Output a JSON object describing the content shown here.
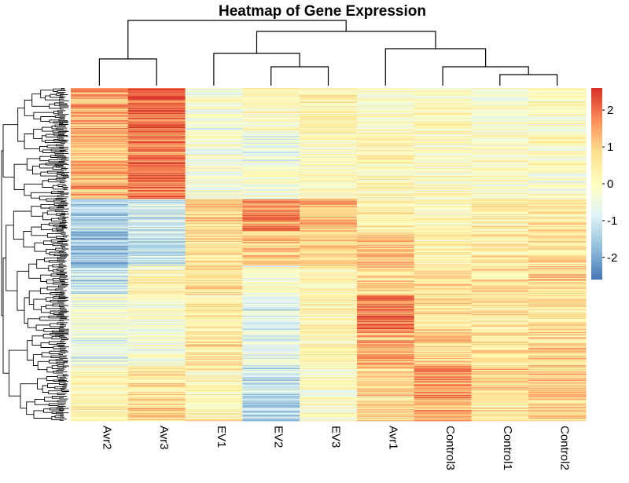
{
  "chart_data": {
    "type": "heatmap",
    "title": "Heatmap of Gene Expression",
    "columns": [
      "Avr2",
      "Avr3",
      "EV1",
      "EV2",
      "EV3",
      "Avr1",
      "Control3",
      "Control1",
      "Control2"
    ],
    "color_scale": {
      "min": -2.6,
      "max": 2.6,
      "ticks": [
        2,
        1,
        0,
        -1,
        -2
      ],
      "tick_labels": [
        "2",
        "1",
        "0",
        "-1",
        "-2"
      ],
      "colors": [
        "#4575b4",
        "#91bfdb",
        "#e0f3f8",
        "#ffffbf",
        "#fee090",
        "#fc8d59",
        "#d73027"
      ]
    },
    "row_blocks": [
      {
        "rows": 60,
        "values": [
          1.3,
          2.1,
          -0.3,
          0.0,
          0.3,
          -0.1,
          0.1,
          -0.2,
          -0.1
        ]
      },
      {
        "rows": 45,
        "values": [
          1.2,
          1.9,
          -0.2,
          -0.6,
          0.0,
          0.2,
          0.0,
          -0.1,
          0.0
        ]
      },
      {
        "rows": 45,
        "values": [
          1.4,
          2.0,
          -0.2,
          -0.2,
          0.0,
          0.1,
          0.0,
          -0.1,
          -0.2
        ]
      },
      {
        "rows": 45,
        "values": [
          -1.3,
          -0.9,
          1.0,
          1.6,
          1.2,
          0.4,
          0.1,
          0.3,
          0.5
        ]
      },
      {
        "rows": 45,
        "values": [
          -1.6,
          -1.0,
          0.8,
          1.0,
          0.8,
          1.0,
          0.3,
          0.4,
          0.7
        ]
      },
      {
        "rows": 40,
        "values": [
          -1.1,
          0.2,
          0.7,
          -0.3,
          0.1,
          0.8,
          0.7,
          0.6,
          0.8
        ]
      },
      {
        "rows": 50,
        "values": [
          -0.4,
          -0.3,
          0.4,
          -0.8,
          0.2,
          2.0,
          0.6,
          0.5,
          0.6
        ]
      },
      {
        "rows": 45,
        "values": [
          -0.6,
          -0.3,
          0.6,
          -0.5,
          0.2,
          1.3,
          0.9,
          0.7,
          0.8
        ]
      },
      {
        "rows": 45,
        "values": [
          0.1,
          0.6,
          0.2,
          -1.1,
          -0.1,
          0.8,
          1.6,
          0.9,
          1.0
        ]
      },
      {
        "rows": 30,
        "values": [
          0.3,
          0.9,
          0.3,
          -1.3,
          0.0,
          0.9,
          1.2,
          0.7,
          0.8
        ]
      }
    ]
  }
}
